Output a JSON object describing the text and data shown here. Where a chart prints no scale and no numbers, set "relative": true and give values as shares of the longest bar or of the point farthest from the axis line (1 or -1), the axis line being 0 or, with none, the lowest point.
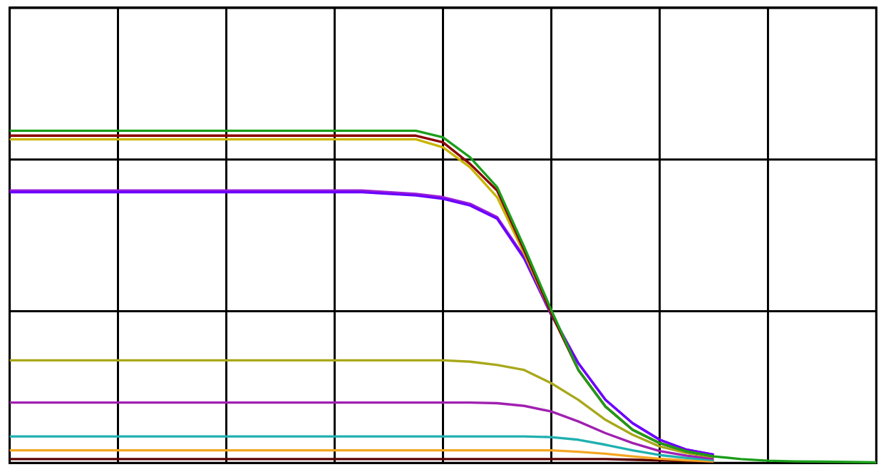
{
  "chart_data": {
    "type": "line",
    "relative": true,
    "grid": true,
    "tick_labels": false,
    "marker": "none",
    "line_style": "solid",
    "categories": [
      null,
      null,
      null,
      null,
      null,
      null,
      null,
      null,
      null,
      null,
      null,
      null,
      null,
      null,
      null,
      null,
      null,
      null,
      null,
      null,
      null,
      null,
      null,
      null,
      null,
      null,
      null,
      null,
      null,
      null,
      null,
      null,
      null
    ],
    "series": [
      {
        "color": "#5a0000",
        "values": [
          0.012,
          0.012,
          0.012,
          0.012,
          0.012,
          0.012,
          0.012,
          0.012,
          0.012,
          0.012,
          0.012,
          0.012,
          0.012,
          0.012,
          0.012,
          0.012,
          0.012,
          0.012,
          0.012,
          0.012,
          0.012,
          0.012,
          0.012,
          0.01,
          0.008,
          0.006,
          0.004,
          null,
          null,
          null,
          null,
          null,
          null
        ]
      },
      {
        "color": "#f5a623",
        "values": [
          0.038,
          0.038,
          0.038,
          0.038,
          0.038,
          0.038,
          0.038,
          0.038,
          0.038,
          0.038,
          0.038,
          0.038,
          0.038,
          0.038,
          0.038,
          0.038,
          0.038,
          0.038,
          0.038,
          0.038,
          0.038,
          0.034,
          0.028,
          0.02,
          0.013,
          0.008,
          0.005,
          null,
          null,
          null,
          null,
          null,
          null
        ]
      },
      {
        "color": "#20b0b0",
        "values": [
          0.08,
          0.08,
          0.08,
          0.08,
          0.08,
          0.08,
          0.08,
          0.08,
          0.08,
          0.08,
          0.08,
          0.08,
          0.08,
          0.08,
          0.08,
          0.08,
          0.08,
          0.08,
          0.08,
          0.08,
          0.078,
          0.07,
          0.055,
          0.038,
          0.024,
          0.015,
          0.009,
          null,
          null,
          null,
          null,
          null,
          null
        ]
      },
      {
        "color": "#a020b0",
        "values": [
          0.182,
          0.182,
          0.182,
          0.182,
          0.182,
          0.182,
          0.182,
          0.182,
          0.182,
          0.182,
          0.182,
          0.182,
          0.182,
          0.182,
          0.182,
          0.182,
          0.182,
          0.182,
          0.18,
          0.172,
          0.155,
          0.125,
          0.09,
          0.06,
          0.036,
          0.022,
          0.013,
          null,
          null,
          null,
          null,
          null,
          null
        ]
      },
      {
        "color": "#a8a81a",
        "values": [
          0.309,
          0.309,
          0.309,
          0.309,
          0.309,
          0.309,
          0.309,
          0.309,
          0.309,
          0.309,
          0.309,
          0.309,
          0.309,
          0.309,
          0.309,
          0.309,
          0.309,
          0.305,
          0.295,
          0.28,
          0.24,
          0.19,
          0.13,
          0.085,
          0.05,
          0.03,
          0.018,
          null,
          null,
          null,
          null,
          null,
          null
        ]
      },
      {
        "color": "#9b1fd6",
        "values": [
          0.82,
          0.82,
          0.82,
          0.82,
          0.82,
          0.82,
          0.82,
          0.82,
          0.82,
          0.82,
          0.82,
          0.82,
          0.82,
          0.82,
          0.815,
          0.81,
          0.8,
          0.78,
          0.74,
          0.62,
          0.45,
          0.3,
          0.19,
          0.12,
          0.07,
          0.04,
          0.025,
          null,
          null,
          null,
          null,
          null,
          null
        ]
      },
      {
        "color": "#6a00ff",
        "values": [
          0.815,
          0.815,
          0.815,
          0.815,
          0.815,
          0.815,
          0.815,
          0.815,
          0.815,
          0.815,
          0.815,
          0.815,
          0.815,
          0.815,
          0.81,
          0.805,
          0.795,
          0.775,
          0.735,
          0.615,
          0.445,
          0.3,
          0.19,
          0.12,
          0.07,
          0.04,
          0.025,
          null,
          null,
          null,
          null,
          null,
          null
        ]
      },
      {
        "color": "#c8b400",
        "values": [
          0.974,
          0.974,
          0.974,
          0.974,
          0.974,
          0.974,
          0.974,
          0.974,
          0.974,
          0.974,
          0.974,
          0.974,
          0.974,
          0.974,
          0.974,
          0.974,
          0.95,
          0.89,
          0.8,
          0.63,
          0.45,
          0.28,
          0.17,
          0.1,
          0.06,
          0.035,
          0.02,
          null,
          null,
          null,
          null,
          null,
          null
        ]
      },
      {
        "color": "#8b0000",
        "values": [
          0.985,
          0.985,
          0.985,
          0.985,
          0.985,
          0.985,
          0.985,
          0.985,
          0.985,
          0.985,
          0.985,
          0.985,
          0.985,
          0.985,
          0.985,
          0.985,
          0.965,
          0.9,
          0.82,
          0.64,
          0.45,
          0.28,
          0.17,
          0.1,
          0.06,
          0.035,
          0.02,
          null,
          null,
          null,
          null,
          null,
          null
        ]
      },
      {
        "color": "#1a9e1a",
        "values": [
          1.0,
          1.0,
          1.0,
          1.0,
          1.0,
          1.0,
          1.0,
          1.0,
          1.0,
          1.0,
          1.0,
          1.0,
          1.0,
          1.0,
          1.0,
          1.0,
          0.98,
          0.92,
          0.83,
          0.65,
          0.46,
          0.28,
          0.17,
          0.1,
          0.06,
          0.035,
          0.02,
          0.012,
          0.007,
          0.005,
          0.004,
          0.003,
          0.002
        ]
      }
    ]
  }
}
